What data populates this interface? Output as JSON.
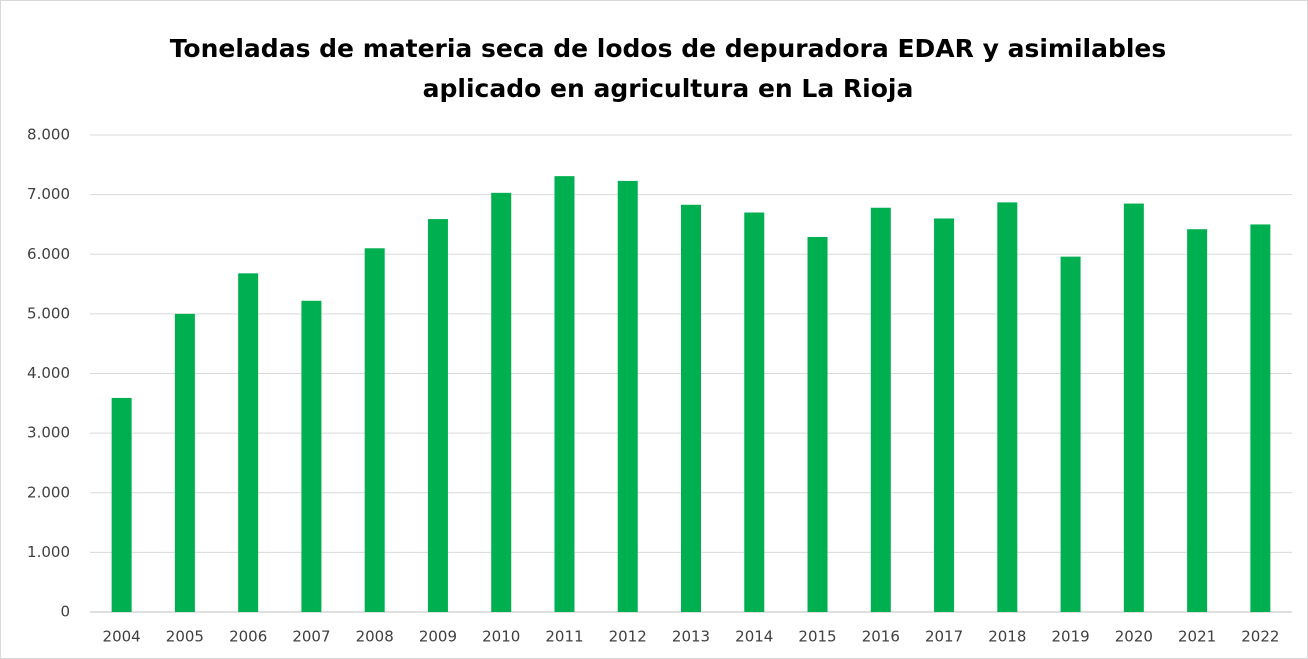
{
  "chart_data": {
    "type": "bar",
    "title": [
      "Toneladas de materia seca de lodos de depuradora EDAR y asimilables",
      "aplicado en agricultura en La Rioja"
    ],
    "categories": [
      "2004",
      "2005",
      "2006",
      "2007",
      "2008",
      "2009",
      "2010",
      "2011",
      "2012",
      "2013",
      "2014",
      "2015",
      "2016",
      "2017",
      "2018",
      "2019",
      "2020",
      "2021",
      "2022"
    ],
    "values": [
      3590,
      5000,
      5680,
      5220,
      6100,
      6590,
      7030,
      7310,
      7230,
      6830,
      6700,
      6290,
      6780,
      6600,
      6870,
      5960,
      6850,
      6420,
      6500
    ],
    "color": "#00b050",
    "ylim": [
      0,
      8000
    ],
    "yticks": [
      0,
      {
        "value": 1000,
        "label": "1.000"
      },
      {
        "value": 2000,
        "label": "2.000"
      },
      {
        "value": 3000,
        "label": "3.000"
      },
      {
        "value": 4000,
        "label": "4.000"
      },
      {
        "value": 5000,
        "label": "5.000"
      },
      {
        "value": 6000,
        "label": "6.000"
      },
      {
        "value": 7000,
        "label": "7.000"
      },
      {
        "value": 8000,
        "label": "8.000"
      }
    ],
    "grid": true
  }
}
